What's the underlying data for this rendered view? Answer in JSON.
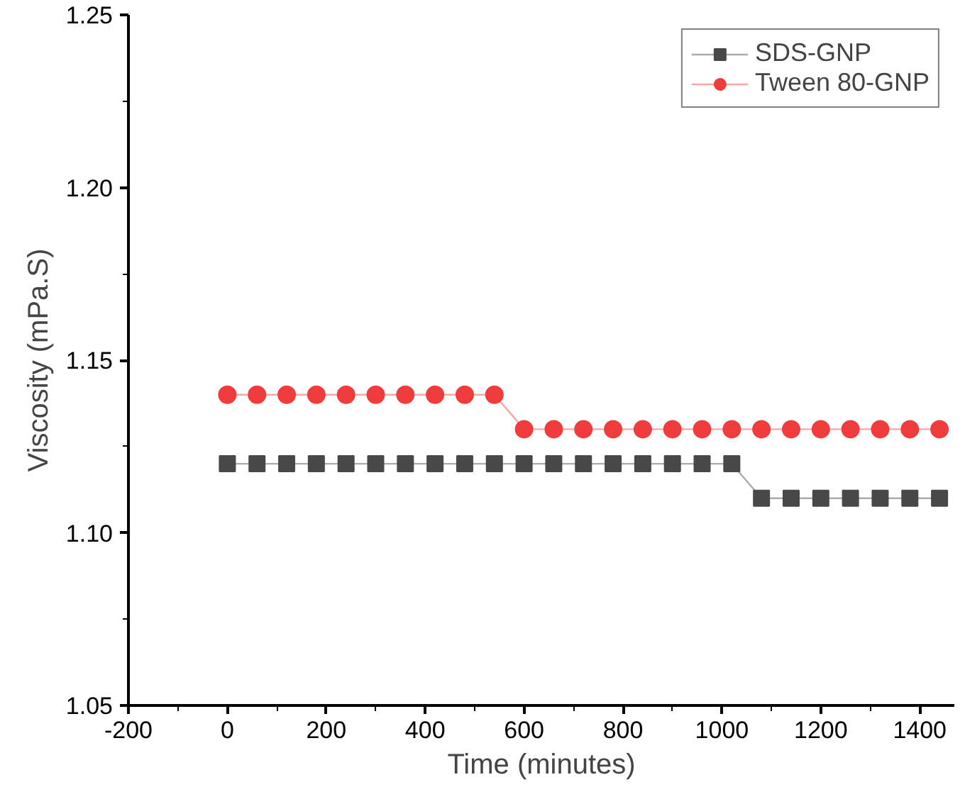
{
  "chart_data": {
    "type": "line",
    "xlabel": "Time (minutes)",
    "ylabel": "Viscosity (mPa.S)",
    "x": [
      0,
      60,
      120,
      180,
      240,
      300,
      360,
      420,
      480,
      540,
      600,
      660,
      720,
      780,
      840,
      900,
      960,
      1020,
      1080,
      1140,
      1200,
      1260,
      1320,
      1380,
      1440
    ],
    "series": [
      {
        "name": "SDS-GNP",
        "color": "#484848",
        "marker": "square",
        "values": [
          1.12,
          1.12,
          1.12,
          1.12,
          1.12,
          1.12,
          1.12,
          1.12,
          1.12,
          1.12,
          1.12,
          1.12,
          1.12,
          1.12,
          1.12,
          1.12,
          1.12,
          1.12,
          1.11,
          1.11,
          1.11,
          1.11,
          1.11,
          1.11,
          1.11
        ]
      },
      {
        "name": "Tween 80-GNP",
        "color": "#f03c3c",
        "marker": "circle",
        "values": [
          1.14,
          1.14,
          1.14,
          1.14,
          1.14,
          1.14,
          1.14,
          1.14,
          1.14,
          1.14,
          1.13,
          1.13,
          1.13,
          1.13,
          1.13,
          1.13,
          1.13,
          1.13,
          1.13,
          1.13,
          1.13,
          1.13,
          1.13,
          1.13,
          1.13
        ]
      }
    ],
    "xlim": [
      -200,
      1470
    ],
    "xticks": [
      -200,
      0,
      200,
      400,
      600,
      800,
      1000,
      1200,
      1400
    ],
    "ylim": [
      1.05,
      1.25
    ],
    "yticks": [
      {
        "value": 1.05,
        "label": "1.05"
      },
      {
        "value": 1.1,
        "label": "1.10"
      },
      {
        "value": 1.15,
        "label": "1.15"
      },
      {
        "value": 1.2,
        "label": "1.20"
      },
      {
        "value": 1.25,
        "label": "1.25"
      }
    ],
    "grid": false,
    "legend": "top right",
    "line_style": "solid"
  }
}
